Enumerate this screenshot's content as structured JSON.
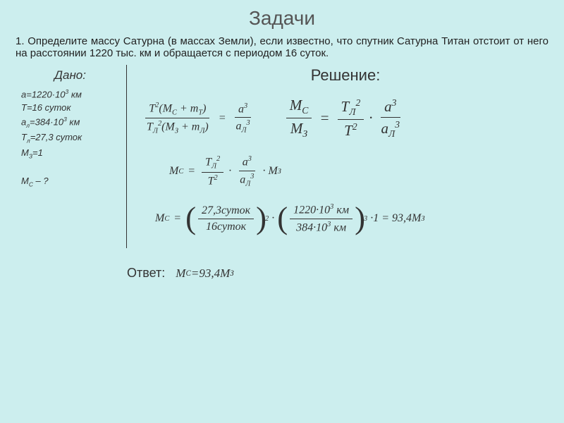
{
  "title": "Задачи",
  "problem": "1. Определите массу Сатурна (в массах Земли), если известно, что спутник Сатурна Титан отстоит от него на расстоянии 1220 тыс. км и обращается с периодом 16 суток.",
  "given": {
    "title": "Дано:",
    "lines": [
      "a=1220·10³ км",
      "T=16 суток",
      "aл=384·10³ км",
      "Tл=27,3 суток",
      "Mз=1",
      "",
      "Mс – ?"
    ]
  },
  "solution_header": "Решение:",
  "answer_label": "Ответ:",
  "values": {
    "T_moon": "27,3суток",
    "T_titan": "16суток",
    "a_titan": "1220·10³ км",
    "a_moon": "384·10³ км",
    "result": "93,4"
  },
  "colors": {
    "background": "#cceeee",
    "text": "#333"
  }
}
